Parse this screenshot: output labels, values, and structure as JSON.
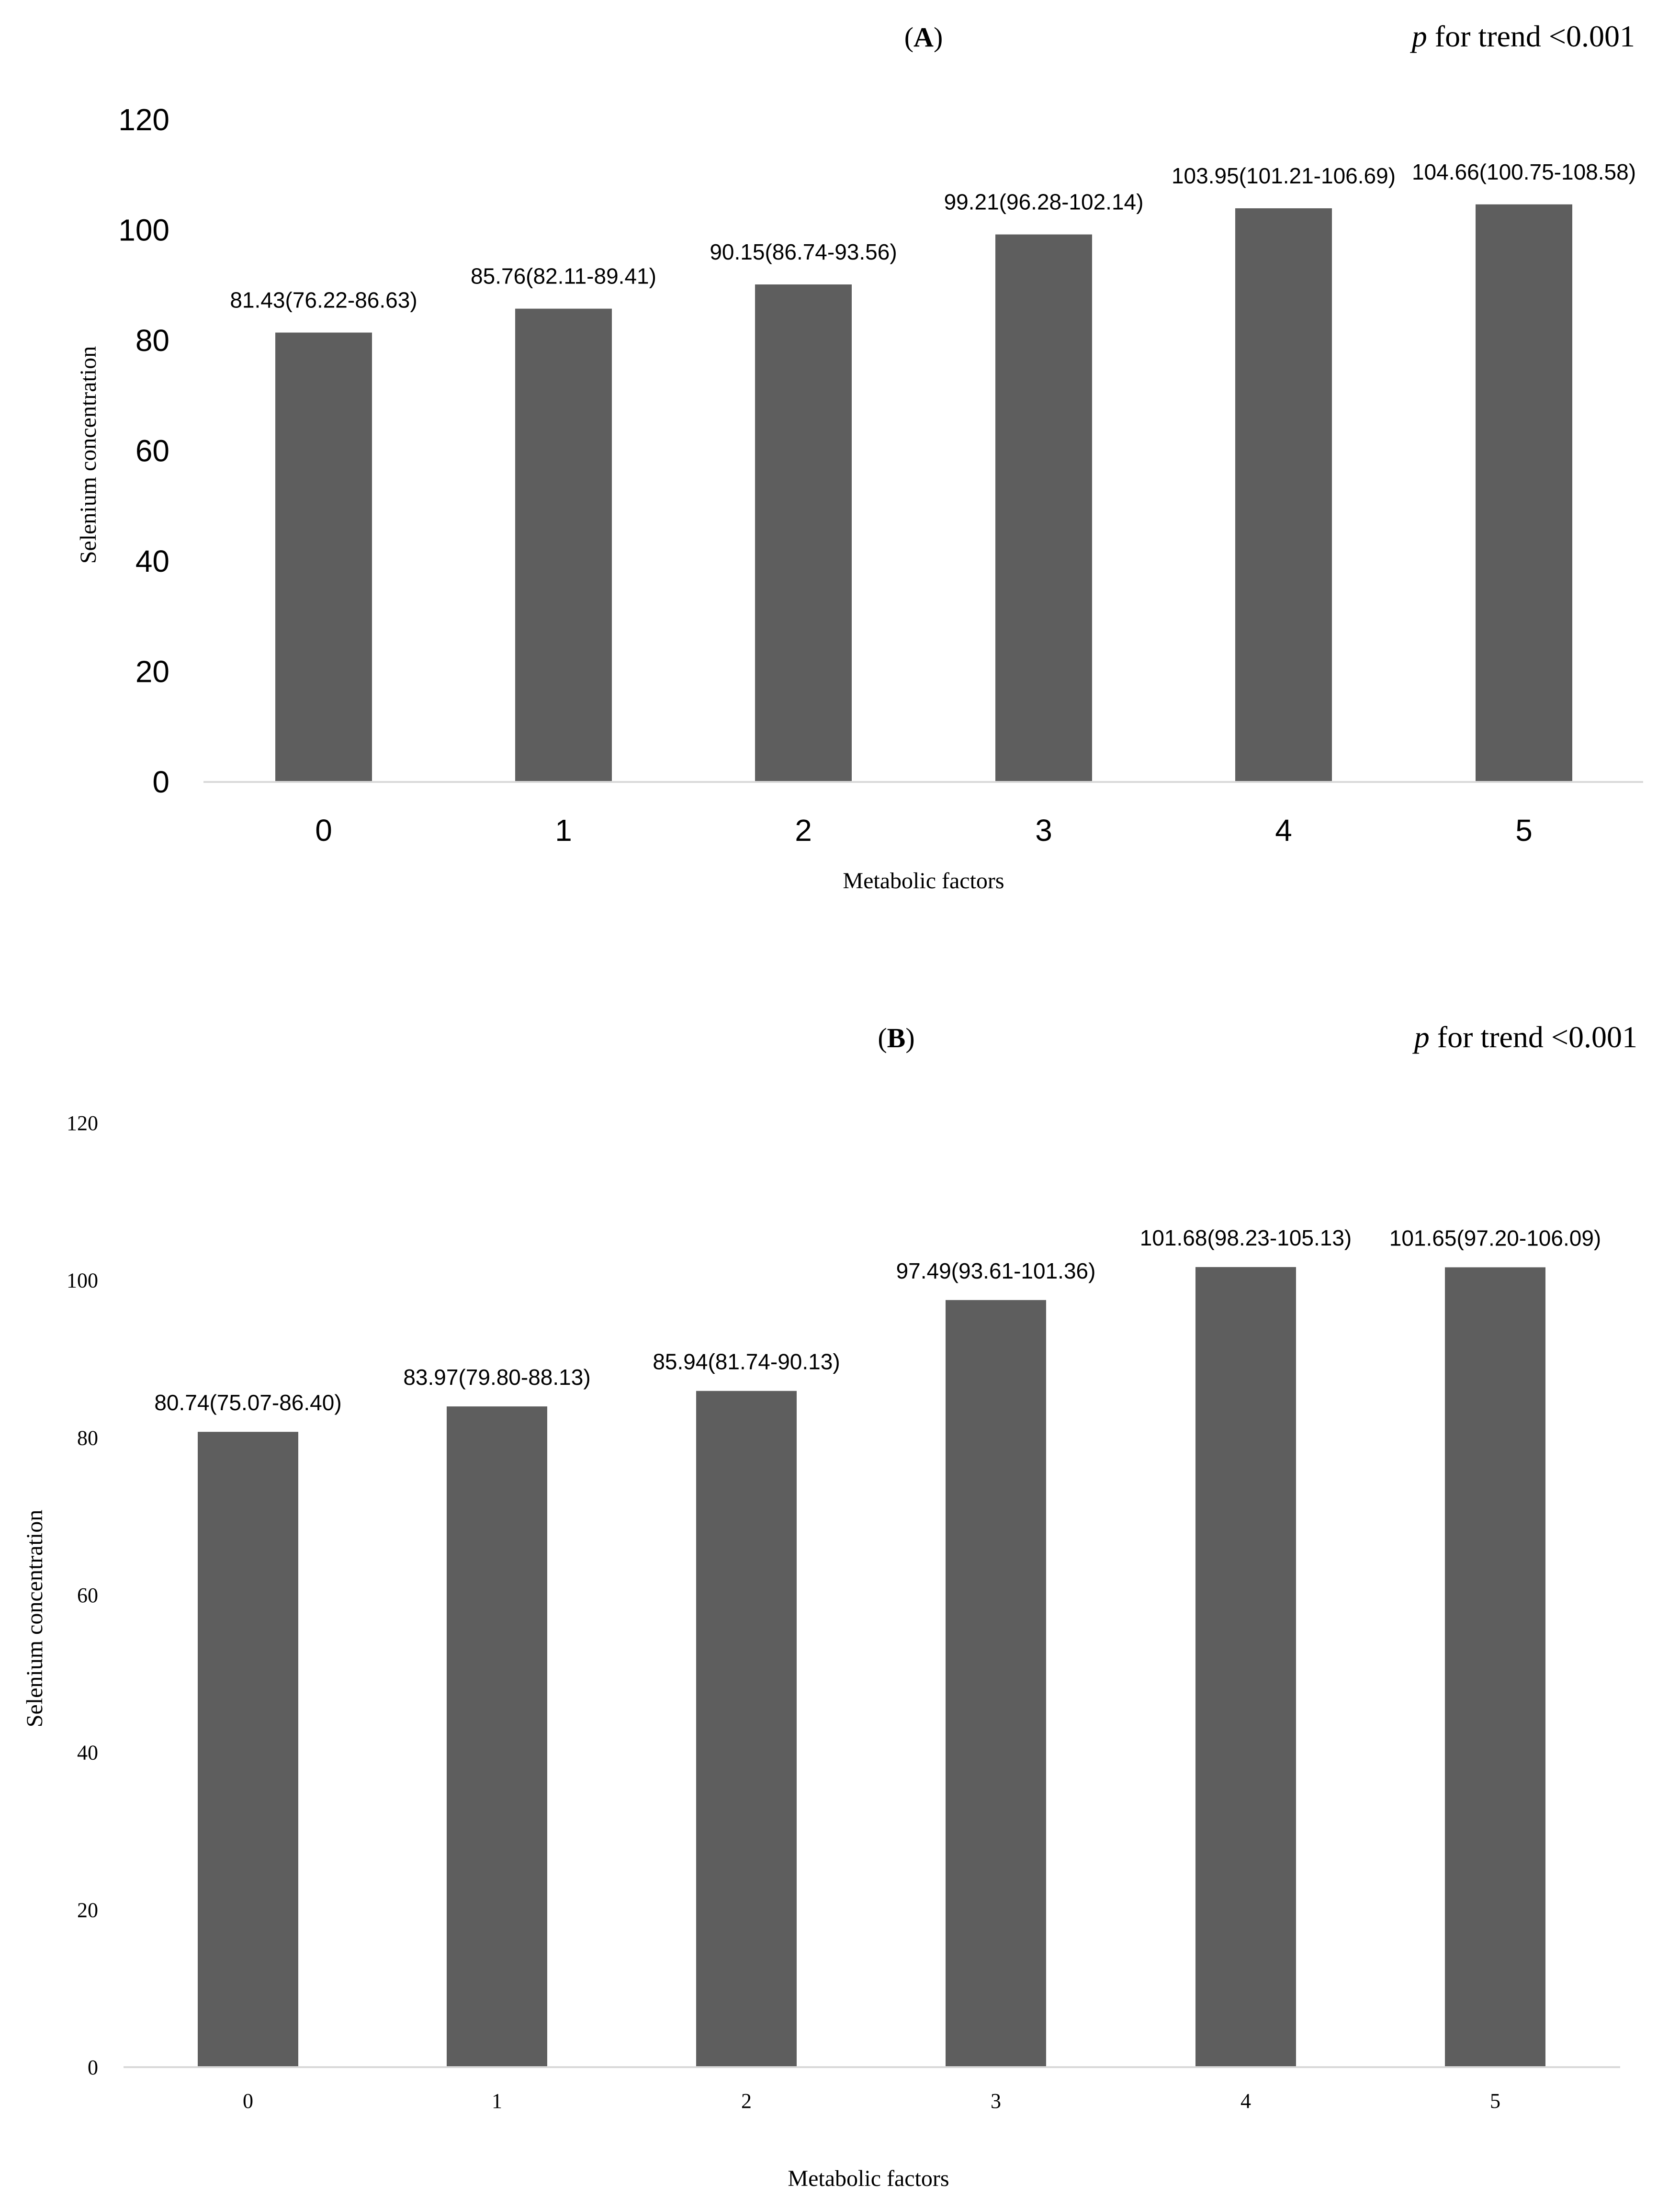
{
  "chart_data": [
    {
      "type": "bar",
      "panel": "A",
      "p_trend": "p for trend <0.001",
      "categories": [
        "0",
        "1",
        "2",
        "3",
        "4",
        "5"
      ],
      "values": [
        81.43,
        85.76,
        90.15,
        99.21,
        103.95,
        104.66
      ],
      "data_labels": [
        "81.43(76.22-86.63)",
        "85.76(82.11-89.41)",
        "90.15(86.74-93.56)",
        "99.21(96.28-102.14)",
        "103.95(101.21-106.69)",
        "104.66(100.75-108.58)"
      ],
      "xlabel": "Metabolic factors",
      "ylabel": "Selenium concentration",
      "ylim": [
        0,
        120
      ],
      "yticks": [
        0,
        20,
        40,
        60,
        80,
        100,
        120
      ],
      "grid": false,
      "bar_color": "#5e5e5e"
    },
    {
      "type": "bar",
      "panel": "B",
      "p_trend": "p for trend <0.001",
      "categories": [
        "0",
        "1",
        "2",
        "3",
        "4",
        "5"
      ],
      "values": [
        80.74,
        83.97,
        85.94,
        97.49,
        101.68,
        101.65
      ],
      "data_labels": [
        "80.74(75.07-86.40)",
        "83.97(79.80-88.13)",
        "85.94(81.74-90.13)",
        "97.49(93.61-101.36)",
        "101.68(98.23-105.13)",
        "101.65(97.20-106.09)"
      ],
      "xlabel": "Metabolic factors",
      "ylabel": "Selenium concentration",
      "ylim": [
        0,
        120
      ],
      "yticks": [
        0,
        20,
        40,
        60,
        80,
        100,
        120
      ],
      "grid": false,
      "bar_color": "#5e5e5e"
    }
  ]
}
